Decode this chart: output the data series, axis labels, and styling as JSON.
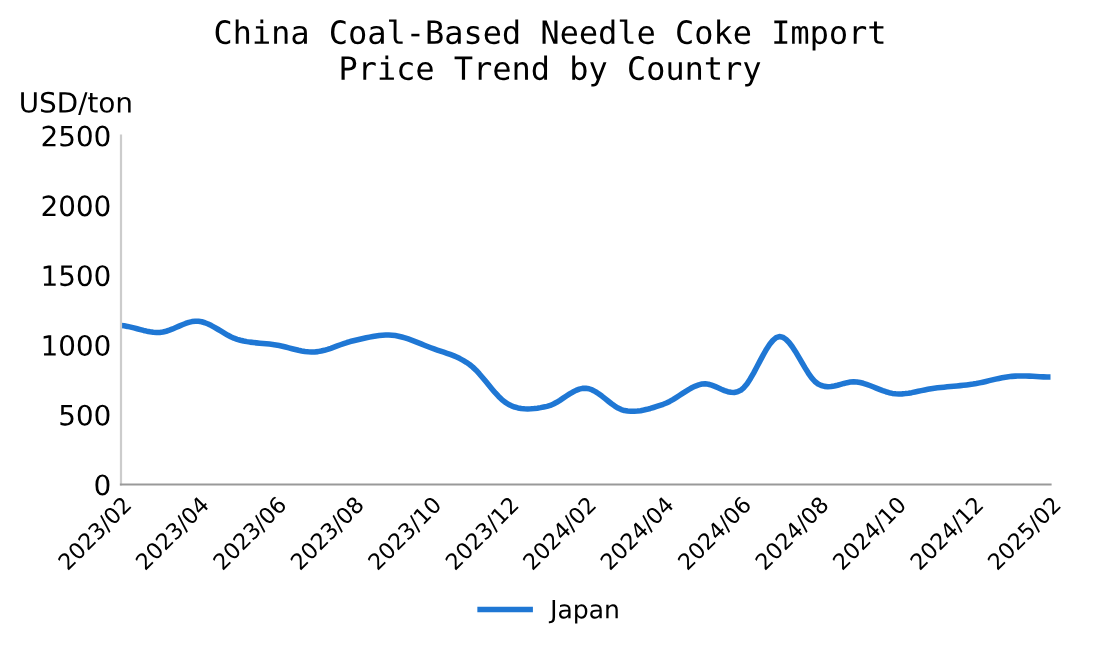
{
  "chart_data": {
    "type": "line",
    "title": "China Coal-Based Needle Coke Import\nPrice Trend by Country",
    "ylabel": "USD/ton",
    "categories": [
      "2023/02",
      null,
      "2023/04",
      null,
      "2023/06",
      null,
      "2023/08",
      null,
      "2023/10",
      null,
      "2023/12",
      null,
      "2024/02",
      null,
      "2024/04",
      null,
      "2024/06",
      null,
      "2024/08",
      null,
      "2024/10",
      null,
      "2024/12",
      null,
      "2025/02"
    ],
    "series": [
      {
        "name": "Japan",
        "color": "#1f77d4",
        "values": [
          1140,
          1090,
          1170,
          1040,
          1000,
          950,
          1030,
          1070,
          980,
          860,
          575,
          560,
          690,
          530,
          575,
          720,
          675,
          1060,
          720,
          735,
          650,
          690,
          720,
          775,
          770
        ]
      }
    ],
    "ylim": [
      0,
      2500
    ],
    "yticks": [
      0,
      500,
      1000,
      1500,
      2000,
      2500
    ],
    "grid": false,
    "legend": "bottom",
    "marker": "none",
    "line_style": "solid"
  }
}
